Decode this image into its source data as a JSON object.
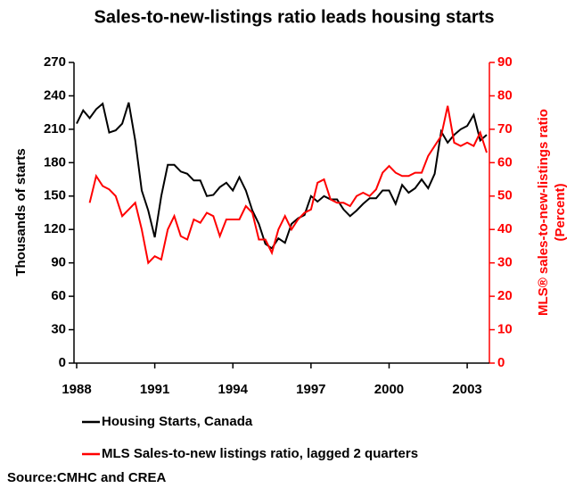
{
  "chart_data": {
    "type": "line",
    "title": "Sales-to-new-listings ratio leads housing starts",
    "y_label": "Thousands of starts",
    "y2_label": [
      "MLS® sales-to-new-listings ratio",
      "(Percent)"
    ],
    "source": "Source:CMHC and CREA",
    "x": [
      1988,
      1988.25,
      1988.5,
      1988.75,
      1989,
      1989.25,
      1989.5,
      1989.75,
      1990,
      1990.25,
      1990.5,
      1990.75,
      1991,
      1991.25,
      1991.5,
      1991.75,
      1992,
      1992.25,
      1992.5,
      1992.75,
      1993,
      1993.25,
      1993.5,
      1993.75,
      1994,
      1994.25,
      1994.5,
      1994.75,
      1995,
      1995.25,
      1995.5,
      1995.75,
      1996,
      1996.25,
      1996.5,
      1996.75,
      1997,
      1997.25,
      1997.5,
      1997.75,
      1998,
      1998.25,
      1998.5,
      1998.75,
      1999,
      1999.25,
      1999.5,
      1999.75,
      2000,
      2000.25,
      2000.5,
      2000.75,
      2001,
      2001.25,
      2001.5,
      2001.75,
      2002,
      2002.25,
      2002.5,
      2002.75,
      2003,
      2003.25,
      2003.5,
      2003.75
    ],
    "xlim": [
      1988,
      2003.75
    ],
    "xticks": [
      1988,
      1991,
      1994,
      1997,
      2000,
      2003
    ],
    "ylim": [
      0,
      270
    ],
    "yticks": [
      0,
      30,
      60,
      90,
      120,
      150,
      180,
      210,
      240,
      270
    ],
    "y2lim": [
      0,
      90
    ],
    "y2ticks": [
      0,
      10,
      20,
      30,
      40,
      50,
      60,
      70,
      80,
      90
    ],
    "series": [
      {
        "name": "Housing Starts, Canada",
        "color": "#000000",
        "axis": "y",
        "values": [
          215,
          227,
          220,
          228,
          233,
          207,
          209,
          215,
          234,
          200,
          155,
          137,
          113,
          150,
          178,
          178,
          172,
          170,
          164,
          164,
          150,
          151,
          158,
          162,
          155,
          167,
          155,
          137,
          125,
          107,
          103,
          112,
          108,
          125,
          130,
          133,
          150,
          145,
          150,
          147,
          147,
          138,
          132,
          137,
          143,
          148,
          148,
          155,
          155,
          143,
          160,
          153,
          157,
          165,
          157,
          170,
          208,
          198,
          205,
          210,
          213,
          223,
          200,
          205
        ]
      },
      {
        "name": "MLS Sales-to-new listings ratio, lagged 2 quarters",
        "color": "#ff0000",
        "axis": "y2",
        "values": [
          null,
          null,
          48,
          56,
          53,
          52,
          50,
          44,
          46,
          48,
          40,
          30,
          32,
          31,
          40,
          44,
          38,
          37,
          43,
          42,
          45,
          44,
          38,
          43,
          43,
          43,
          47,
          45,
          37,
          37,
          33,
          40,
          44,
          40,
          43,
          45,
          46,
          54,
          55,
          49,
          48,
          48,
          47,
          50,
          51,
          50,
          52,
          57,
          59,
          57,
          56,
          56,
          57,
          57,
          62,
          65,
          68,
          77,
          66,
          65,
          66,
          65,
          69,
          63
        ]
      }
    ]
  }
}
